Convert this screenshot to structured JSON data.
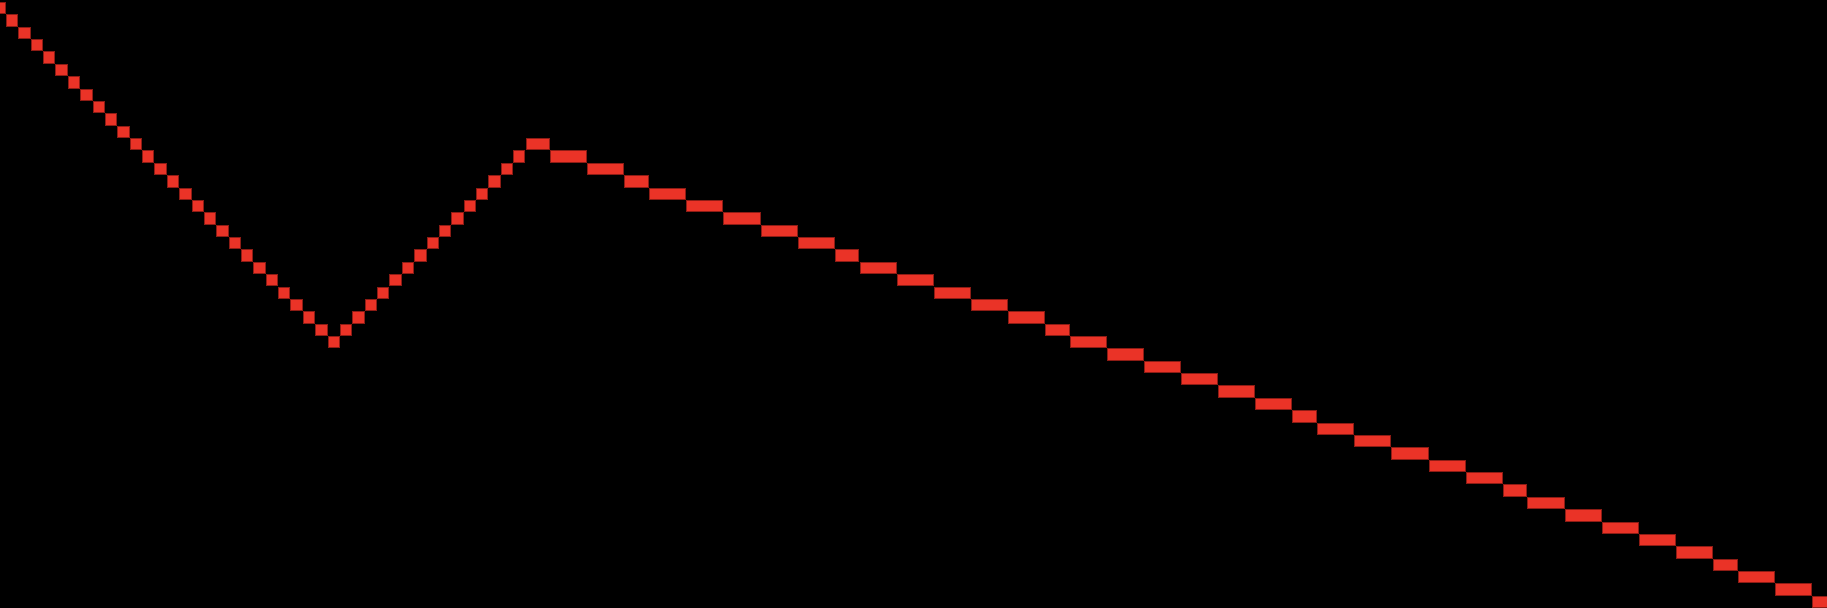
{
  "colors": {
    "background": "#000000",
    "line": "#ea3327",
    "line_edge": "#8e1c15"
  },
  "chart_data": {
    "type": "line",
    "style": "pixel-stepped",
    "grid": false,
    "axes": false,
    "runs": [
      [
        0,
        0,
        1
      ],
      [
        1,
        1,
        1
      ],
      [
        2,
        2,
        1
      ],
      [
        3,
        3,
        1
      ],
      [
        4,
        4,
        1
      ],
      [
        5,
        5,
        1
      ],
      [
        6,
        6,
        1
      ],
      [
        7,
        7,
        1
      ],
      [
        8,
        8,
        1
      ],
      [
        9,
        9,
        1
      ],
      [
        10,
        10,
        1
      ],
      [
        11,
        11,
        1
      ],
      [
        12,
        12,
        1
      ],
      [
        13,
        13,
        1
      ],
      [
        14,
        14,
        1
      ],
      [
        15,
        15,
        1
      ],
      [
        16,
        16,
        1
      ],
      [
        17,
        17,
        1
      ],
      [
        18,
        18,
        1
      ],
      [
        19,
        19,
        1
      ],
      [
        20,
        20,
        1
      ],
      [
        21,
        21,
        1
      ],
      [
        22,
        22,
        1
      ],
      [
        23,
        23,
        1
      ],
      [
        24,
        24,
        1
      ],
      [
        25,
        25,
        1
      ],
      [
        26,
        26,
        1
      ],
      [
        27,
        27,
        1
      ],
      [
        28,
        26,
        1
      ],
      [
        29,
        25,
        1
      ],
      [
        30,
        24,
        1
      ],
      [
        31,
        23,
        1
      ],
      [
        32,
        22,
        1
      ],
      [
        33,
        21,
        1
      ],
      [
        34,
        20,
        1
      ],
      [
        35,
        19,
        1
      ],
      [
        36,
        18,
        1
      ],
      [
        37,
        17,
        1
      ],
      [
        38,
        16,
        1
      ],
      [
        39,
        15,
        1
      ],
      [
        40,
        14,
        1
      ],
      [
        41,
        13,
        1
      ],
      [
        42,
        12,
        1
      ],
      [
        43,
        11,
        2
      ],
      [
        45,
        12,
        3
      ],
      [
        48,
        13,
        3
      ],
      [
        51,
        14,
        2
      ],
      [
        53,
        15,
        3
      ],
      [
        56,
        16,
        3
      ],
      [
        59,
        17,
        3
      ],
      [
        62,
        18,
        3
      ],
      [
        65,
        19,
        3
      ],
      [
        68,
        20,
        2
      ],
      [
        70,
        21,
        3
      ],
      [
        73,
        22,
        3
      ],
      [
        76,
        23,
        3
      ],
      [
        79,
        24,
        3
      ],
      [
        82,
        25,
        3
      ],
      [
        85,
        26,
        2
      ],
      [
        87,
        27,
        3
      ],
      [
        90,
        28,
        3
      ],
      [
        93,
        29,
        3
      ],
      [
        96,
        30,
        3
      ],
      [
        99,
        31,
        3
      ],
      [
        102,
        32,
        3
      ],
      [
        105,
        33,
        2
      ],
      [
        107,
        34,
        3
      ],
      [
        110,
        35,
        3
      ],
      [
        113,
        36,
        3
      ],
      [
        116,
        37,
        3
      ],
      [
        119,
        38,
        3
      ],
      [
        122,
        39,
        2
      ],
      [
        124,
        40,
        3
      ],
      [
        127,
        41,
        3
      ],
      [
        130,
        42,
        3
      ],
      [
        133,
        43,
        3
      ],
      [
        136,
        44,
        3
      ],
      [
        139,
        45,
        2
      ],
      [
        141,
        46,
        3
      ],
      [
        144,
        47,
        3
      ],
      [
        147,
        48,
        3
      ]
    ]
  }
}
